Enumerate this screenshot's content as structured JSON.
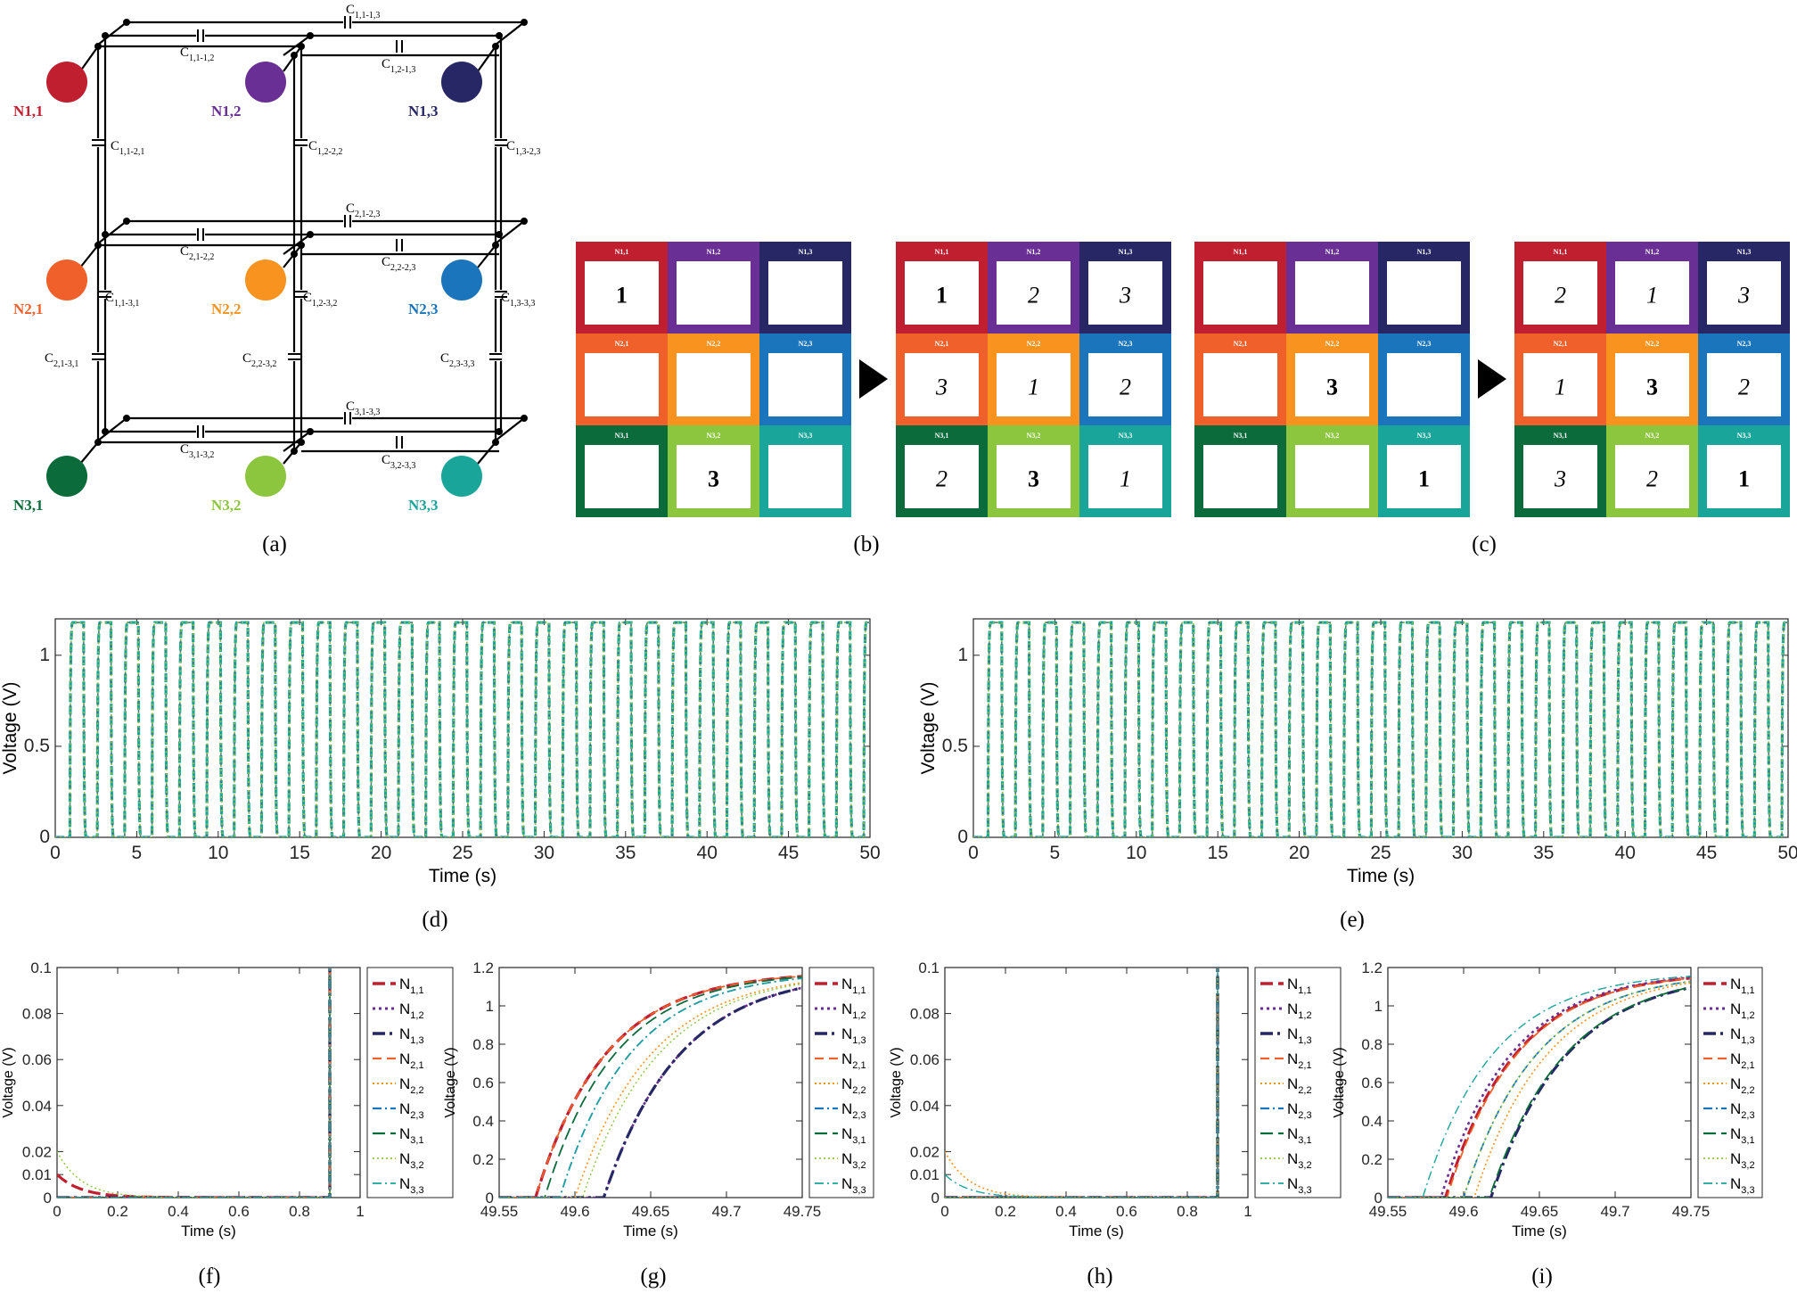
{
  "colors": {
    "N11": "#c01f2f",
    "N12": "#6a2f94",
    "N13": "#272765",
    "N21": "#f0602a",
    "N22": "#f7931e",
    "N23": "#1b75bc",
    "N31": "#0b6b3a",
    "N32": "#8cc63f",
    "N33": "#1aa59a"
  },
  "panel_a": {
    "node_labels": {
      "N11": "N1,1",
      "N12": "N1,2",
      "N13": "N1,3",
      "N21": "N2,1",
      "N22": "N2,2",
      "N23": "N2,3",
      "N31": "N3,1",
      "N32": "N3,2",
      "N33": "N3,3"
    },
    "capacitors": {
      "c1113": "C1,1-1,3",
      "c1112": "C1,1-1,2",
      "c1213": "C1,2-1,3",
      "c1121": "C1,1-2,1",
      "c1222": "C1,2-2,2",
      "c1323": "C1,3-2,3",
      "c2123": "C2,1-2,3",
      "c2122": "C2,1-2,2",
      "c2223": "C2,2-2,3",
      "c1131": "C1,1-3,1",
      "c1232": "C1,2-3,2",
      "c1333": "C1,3-3,3",
      "c2131": "C2,1-3,1",
      "c2232": "C2,2-3,2",
      "c2333": "C2,3-3,3",
      "c3133": "C3,1-3,3",
      "c3132": "C3,1-3,2",
      "c3233": "C3,2-3,3"
    }
  },
  "panel_bc": {
    "cell_labels": [
      "N1,1",
      "N1,2",
      "N1,3",
      "N2,1",
      "N2,2",
      "N2,3",
      "N3,1",
      "N3,2",
      "N3,3"
    ],
    "grids": [
      [
        [
          "1",
          "",
          ""
        ],
        [
          "",
          "",
          ""
        ],
        [
          "",
          "3",
          ""
        ]
      ],
      [
        [
          "1",
          "2",
          "3"
        ],
        [
          "3",
          "1",
          "2"
        ],
        [
          "2",
          "3",
          "1"
        ]
      ],
      [
        [
          "",
          "",
          ""
        ],
        [
          "",
          "3",
          ""
        ],
        [
          "",
          "",
          "1"
        ]
      ],
      [
        [
          "2",
          "1",
          "3"
        ],
        [
          "1",
          "3",
          "2"
        ],
        [
          "3",
          "2",
          "1"
        ]
      ]
    ],
    "bold_cells": [
      [
        [
          0,
          0
        ],
        [
          2,
          1
        ]
      ],
      [
        [
          0,
          0
        ],
        [
          2,
          1
        ]
      ],
      [
        [
          1,
          1
        ],
        [
          2,
          2
        ]
      ],
      [
        [
          1,
          1
        ],
        [
          2,
          2
        ]
      ]
    ]
  },
  "captions": [
    "(a)",
    "(b)",
    "(c)",
    "(d)",
    "(e)",
    "(f)",
    "(g)",
    "(h)",
    "(i)"
  ],
  "legend": {
    "entries": [
      "N1,1",
      "N1,2",
      "N1,3",
      "N2,1",
      "N2,2",
      "N2,3",
      "N3,1",
      "N3,2",
      "N3,3"
    ]
  },
  "chart_data": [
    {
      "id": "d",
      "type": "line",
      "xlabel": "Time (s)",
      "ylabel": "Voltage (V)",
      "xlim": [
        0,
        50
      ],
      "ylim": [
        0,
        1.2
      ],
      "xticks": [
        0,
        5,
        10,
        15,
        20,
        25,
        30,
        35,
        40,
        45,
        50
      ],
      "yticks": [
        0,
        0.5,
        1
      ],
      "description_values": {
        "period_s": 1.68,
        "high_V": 1.18,
        "low_V": 0
      },
      "series_all_overlapping": true
    },
    {
      "id": "e",
      "type": "line",
      "xlabel": "Time (s)",
      "ylabel": "Voltage (V)",
      "xlim": [
        0,
        50
      ],
      "ylim": [
        0,
        1.2
      ],
      "xticks": [
        0,
        5,
        10,
        15,
        20,
        25,
        30,
        35,
        40,
        45,
        50
      ],
      "yticks": [
        0,
        0.5,
        1
      ],
      "description_values": {
        "period_s": 1.68,
        "high_V": 1.18,
        "low_V": 0
      },
      "series_all_overlapping": true
    },
    {
      "id": "f",
      "type": "line",
      "xlabel": "Time (s)",
      "ylabel": "Voltage (V)",
      "xlim": [
        0,
        1
      ],
      "ylim": [
        0,
        0.1
      ],
      "xticks": [
        0,
        0.2,
        0.4,
        0.6,
        0.8,
        1
      ],
      "yticks": [
        0,
        0.01,
        0.02,
        0.04,
        0.06,
        0.08,
        0.1
      ],
      "series": [
        {
          "name": "N1,1",
          "start": 0.01,
          "decay": 0.08,
          "rise": 0.9
        },
        {
          "name": "N1,2",
          "start": 0,
          "decay": 0.08,
          "rise": 0.9
        },
        {
          "name": "N1,3",
          "start": 0,
          "decay": 0.08,
          "rise": 0.9
        },
        {
          "name": "N2,1",
          "start": 0,
          "decay": 0.08,
          "rise": 0.9
        },
        {
          "name": "N2,2",
          "start": 0,
          "decay": 0.08,
          "rise": 0.9
        },
        {
          "name": "N2,3",
          "start": 0,
          "decay": 0.08,
          "rise": 0.9
        },
        {
          "name": "N3,1",
          "start": 0,
          "decay": 0.08,
          "rise": 0.9
        },
        {
          "name": "N3,2",
          "start": 0.02,
          "decay": 0.08,
          "rise": 0.9
        },
        {
          "name": "N3,3",
          "start": 0,
          "decay": 0.08,
          "rise": 0.9
        }
      ]
    },
    {
      "id": "g",
      "type": "line",
      "xlabel": "Time (s)",
      "ylabel": "Voltage (V)",
      "xlim": [
        49.55,
        49.75
      ],
      "ylim": [
        0,
        1.2
      ],
      "xticks": [
        49.55,
        49.6,
        49.65,
        49.7,
        49.75
      ],
      "yticks": [
        0,
        0.2,
        0.4,
        0.6,
        0.8,
        1,
        1.2
      ],
      "series": [
        {
          "name": "N1,1",
          "t0": 49.574,
          "tau": 0.046
        },
        {
          "name": "N1,2",
          "t0": 49.619,
          "tau": 0.05
        },
        {
          "name": "N1,3",
          "t0": 49.619,
          "tau": 0.05
        },
        {
          "name": "N2,1",
          "t0": 49.574,
          "tau": 0.046
        },
        {
          "name": "N2,2",
          "t0": 49.6,
          "tau": 0.05
        },
        {
          "name": "N2,3",
          "t0": 49.59,
          "tau": 0.046
        },
        {
          "name": "N3,1",
          "t0": 49.58,
          "tau": 0.046
        },
        {
          "name": "N3,2",
          "t0": 49.605,
          "tau": 0.05
        },
        {
          "name": "N3,3",
          "t0": 49.59,
          "tau": 0.046
        }
      ]
    },
    {
      "id": "h",
      "type": "line",
      "xlabel": "Time (s)",
      "ylabel": "Voltage (V)",
      "xlim": [
        0,
        1
      ],
      "ylim": [
        0,
        0.1
      ],
      "xticks": [
        0,
        0.2,
        0.4,
        0.6,
        0.8,
        1
      ],
      "yticks": [
        0,
        0.01,
        0.02,
        0.04,
        0.06,
        0.08,
        0.1
      ],
      "series": [
        {
          "name": "N1,1",
          "start": 0,
          "decay": 0.08,
          "rise": 0.9
        },
        {
          "name": "N1,2",
          "start": 0,
          "decay": 0.08,
          "rise": 0.9
        },
        {
          "name": "N1,3",
          "start": 0,
          "decay": 0.08,
          "rise": 0.9
        },
        {
          "name": "N2,1",
          "start": 0,
          "decay": 0.08,
          "rise": 0.9
        },
        {
          "name": "N2,2",
          "start": 0.02,
          "decay": 0.08,
          "rise": 0.9
        },
        {
          "name": "N2,3",
          "start": 0,
          "decay": 0.08,
          "rise": 0.9
        },
        {
          "name": "N3,1",
          "start": 0,
          "decay": 0.08,
          "rise": 0.9
        },
        {
          "name": "N3,2",
          "start": 0,
          "decay": 0.08,
          "rise": 0.9
        },
        {
          "name": "N3,3",
          "start": 0.01,
          "decay": 0.08,
          "rise": 0.9
        }
      ]
    },
    {
      "id": "i",
      "type": "line",
      "xlabel": "Time (s)",
      "ylabel": "Voltage (V)",
      "xlim": [
        49.55,
        49.75
      ],
      "ylim": [
        0,
        1.2
      ],
      "xticks": [
        49.55,
        49.6,
        49.65,
        49.7,
        49.75
      ],
      "yticks": [
        0,
        0.2,
        0.4,
        0.6,
        0.8,
        1,
        1.2
      ],
      "series": [
        {
          "name": "N1,1",
          "t0": 49.588,
          "tau": 0.046
        },
        {
          "name": "N1,2",
          "t0": 49.585,
          "tau": 0.046
        },
        {
          "name": "N1,3",
          "t0": 49.618,
          "tau": 0.05
        },
        {
          "name": "N2,1",
          "t0": 49.589,
          "tau": 0.046
        },
        {
          "name": "N2,2",
          "t0": 49.607,
          "tau": 0.048
        },
        {
          "name": "N2,3",
          "t0": 49.6,
          "tau": 0.048
        },
        {
          "name": "N3,1",
          "t0": 49.617,
          "tau": 0.05
        },
        {
          "name": "N3,2",
          "t0": 49.6,
          "tau": 0.048
        },
        {
          "name": "N3,3",
          "t0": 49.573,
          "tau": 0.046
        }
      ]
    }
  ]
}
